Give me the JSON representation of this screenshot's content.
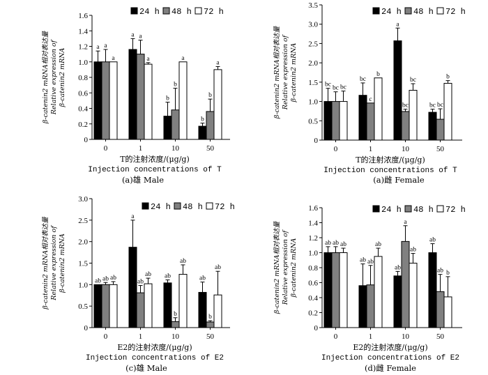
{
  "chart_data": [
    {
      "type": "bar",
      "caption": "(a)雄 Male",
      "xlabel_cn": "T的注射浓度/(μg/g)",
      "xlabel_en": "Injection concentrations of T",
      "ylabel_lines": [
        "β-catenin2 mRNA相对表达量",
        "Relative expression of",
        "β-catenin2 mRNA"
      ],
      "categories": [
        "0",
        "1",
        "10",
        "50"
      ],
      "ylim": [
        0,
        1.6
      ],
      "yticks": [
        "0",
        "0.2",
        "0.4",
        "0.6",
        "0.8",
        "1.0",
        "1.2",
        "1.4",
        "1.6"
      ],
      "series": [
        {
          "name": "24 h",
          "color": "#000000",
          "values": [
            1.0,
            1.16,
            0.3,
            0.17
          ],
          "errors": [
            0.14,
            0.14,
            0.18,
            0.04
          ],
          "labels": [
            "a",
            "a",
            "b",
            "b"
          ]
        },
        {
          "name": "48 h",
          "color": "#808080",
          "values": [
            1.0,
            1.1,
            0.38,
            0.36
          ],
          "errors": [
            0.16,
            0.18,
            0.28,
            0.16
          ],
          "labels": [
            "a",
            "a",
            "b",
            "b"
          ]
        },
        {
          "name": "72 h",
          "color": "#ffffff",
          "values": [
            1.0,
            0.97,
            1.0,
            0.9
          ],
          "errors": [
            0.0,
            0.02,
            0.0,
            0.04
          ],
          "labels": [
            "a",
            "a",
            "a",
            "a"
          ]
        }
      ]
    },
    {
      "type": "bar",
      "caption": "(a)雌 Female",
      "xlabel_cn": "T的注射浓度/(μg/g)",
      "xlabel_en": "Injection concentrations of T",
      "ylabel_lines": [
        "β-catenin2 mRNA相对表达量",
        "Relative expression of",
        "β-catenin2 mRNA"
      ],
      "categories": [
        "0",
        "1",
        "10",
        "50"
      ],
      "ylim": [
        0,
        3.5
      ],
      "yticks": [
        "0",
        "0.5",
        "1.0",
        "1.5",
        "2.0",
        "2.5",
        "3.0",
        "3.5"
      ],
      "series": [
        {
          "name": "24 h",
          "color": "#000000",
          "values": [
            1.0,
            1.16,
            2.57,
            0.72
          ],
          "errors": [
            0.34,
            0.32,
            0.33,
            0.08
          ],
          "labels": [
            "bc",
            "bc",
            "a",
            "bc"
          ]
        },
        {
          "name": "48 h",
          "color": "#808080",
          "values": [
            1.0,
            0.96,
            0.74,
            0.54
          ],
          "errors": [
            0.25,
            0.0,
            0.06,
            0.27
          ],
          "labels": [
            "bc",
            "c",
            "bc",
            "bc"
          ]
        },
        {
          "name": "72 h",
          "color": "#ffffff",
          "values": [
            1.0,
            1.61,
            1.29,
            1.47
          ],
          "errors": [
            0.27,
            0.0,
            0.17,
            0.07
          ],
          "labels": [
            "bc",
            "b",
            "bc",
            "b"
          ]
        }
      ]
    },
    {
      "type": "bar",
      "caption": "(c)雄 Male",
      "xlabel_cn": "E2的注射浓度/(μg/g)",
      "xlabel_en": "Injection concentrations of E2",
      "ylabel_lines": [
        "β-catenin2 mRNA相对表达量",
        "Relative expression of",
        "β-catenin2 mRNA"
      ],
      "categories": [
        "0",
        "1",
        "10",
        "50"
      ],
      "ylim": [
        0,
        3.0
      ],
      "yticks": [
        "0",
        "0.5",
        "1.0",
        "1.5",
        "2.0",
        "2.5",
        "3.0"
      ],
      "series": [
        {
          "name": "24 h",
          "color": "#000000",
          "values": [
            1.0,
            1.87,
            1.04,
            0.82
          ],
          "errors": [
            0.0,
            0.63,
            0.07,
            0.24
          ],
          "labels": [
            "ab",
            "a",
            "ab",
            "ab"
          ]
        },
        {
          "name": "48 h",
          "color": "#808080",
          "values": [
            1.0,
            0.81,
            0.14,
            0.13
          ],
          "errors": [
            0.05,
            0.17,
            0.09,
            0.03
          ],
          "labels": [
            "ab",
            "ab",
            "b",
            "b"
          ]
        },
        {
          "name": "72 h",
          "color": "#ffffff",
          "values": [
            1.0,
            1.02,
            1.24,
            0.76
          ],
          "errors": [
            0.07,
            0.13,
            0.22,
            0.55
          ],
          "labels": [
            "ab",
            "ab",
            "ab",
            "ab"
          ]
        }
      ]
    },
    {
      "type": "bar",
      "caption": "(d)雌 Female",
      "xlabel_cn": "E2的注射浓度/(μg/g)",
      "xlabel_en": "Injection concentrations of E2",
      "ylabel_lines": [
        "β-catenin2 mRNA相对表达量",
        "Relative expression of",
        "β-catenin2 mRNA"
      ],
      "categories": [
        "0",
        "1",
        "10",
        "50"
      ],
      "ylim": [
        0,
        1.6
      ],
      "yticks": [
        "0",
        "0.2",
        "0.4",
        "0.6",
        "0.8",
        "1.0",
        "1.2",
        "1.4",
        "1.6"
      ],
      "series": [
        {
          "name": "24 h",
          "color": "#000000",
          "values": [
            1.0,
            0.56,
            0.69,
            1.0
          ],
          "errors": [
            0.08,
            0.29,
            0.06,
            0.12
          ],
          "labels": [
            "ab",
            "ab",
            "ab",
            "ab"
          ]
        },
        {
          "name": "48 h",
          "color": "#808080",
          "values": [
            1.0,
            0.57,
            1.15,
            0.48
          ],
          "errors": [
            0.08,
            0.26,
            0.21,
            0.23
          ],
          "labels": [
            "ab",
            "ab",
            "a",
            "ab"
          ]
        },
        {
          "name": "72 h",
          "color": "#ffffff",
          "values": [
            1.0,
            0.95,
            0.86,
            0.41
          ],
          "errors": [
            0.06,
            0.11,
            0.13,
            0.27
          ],
          "labels": [
            "ab",
            "ab",
            "ab",
            "b"
          ]
        }
      ]
    }
  ]
}
